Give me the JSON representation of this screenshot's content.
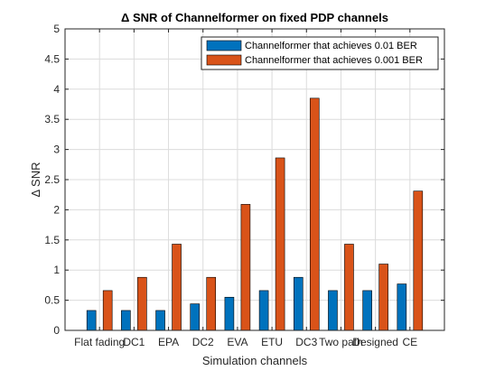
{
  "chart_data": {
    "type": "bar",
    "title": "Δ SNR of Channelformer on fixed PDP channels",
    "xlabel": "Simulation channels",
    "ylabel": "Δ SNR",
    "ylim": [
      0,
      5
    ],
    "yticks": [
      "0",
      "0.5",
      "1",
      "1.5",
      "2",
      "2.5",
      "3",
      "3.5",
      "4",
      "4.5",
      "5"
    ],
    "categories": [
      "Flat fading",
      "DC1",
      "EPA",
      "DC2",
      "EVA",
      "ETU",
      "DC3",
      "Two path",
      "Designed",
      "CE"
    ],
    "grid": true,
    "legend_position": "top-right",
    "series": [
      {
        "name": "Channelformer that achieves 0.01 BER",
        "color": "#0072BD",
        "values": [
          0.33,
          0.33,
          0.33,
          0.44,
          0.55,
          0.66,
          0.88,
          0.66,
          0.66,
          0.77
        ]
      },
      {
        "name": "Channelformer that achieves 0.001 BER",
        "color": "#D95319",
        "values": [
          0.66,
          0.88,
          1.43,
          0.88,
          2.09,
          2.86,
          3.85,
          1.43,
          1.1,
          2.31
        ]
      }
    ]
  }
}
